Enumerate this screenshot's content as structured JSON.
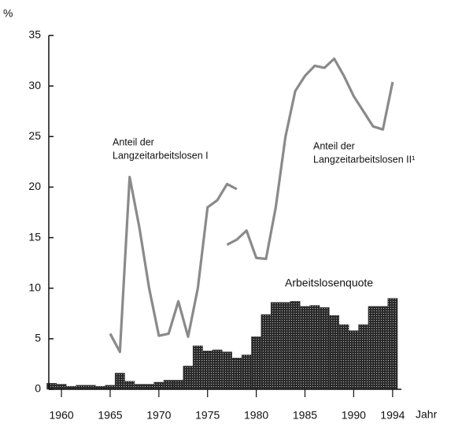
{
  "chart_data": {
    "type": "bar-line",
    "y_unit_label": "%",
    "x_axis_label": "Jahr",
    "xlim": [
      1958.7,
      1994.9
    ],
    "ylim": [
      0,
      35
    ],
    "xticks": [
      1960,
      1965,
      1970,
      1975,
      1980,
      1985,
      1990,
      1994
    ],
    "yticks": [
      0,
      5,
      10,
      15,
      20,
      25,
      30,
      35
    ],
    "bars": {
      "name": "Arbeitslosenquote",
      "color": "#3a3a3a",
      "x": [
        1959,
        1960,
        1961,
        1962,
        1963,
        1964,
        1965,
        1966,
        1967,
        1968,
        1969,
        1970,
        1971,
        1972,
        1973,
        1974,
        1975,
        1976,
        1977,
        1978,
        1979,
        1980,
        1981,
        1982,
        1983,
        1984,
        1985,
        1986,
        1987,
        1988,
        1989,
        1990,
        1991,
        1992,
        1993,
        1994
      ],
      "values": [
        0.6,
        0.5,
        0.3,
        0.4,
        0.4,
        0.3,
        0.4,
        1.6,
        0.8,
        0.5,
        0.5,
        0.7,
        0.9,
        0.9,
        2.3,
        4.3,
        3.8,
        3.9,
        3.7,
        3.1,
        3.4,
        5.2,
        7.4,
        8.6,
        8.6,
        8.7,
        8.2,
        8.3,
        8.1,
        7.3,
        6.4,
        5.8,
        6.4,
        8.2,
        8.2,
        9.0
      ]
    },
    "series": [
      {
        "name": [
          "Anteil der",
          "Langzeitarbeitslosen I"
        ],
        "color": "#8a8a8a",
        "x": [
          1965,
          1966,
          1967,
          1968,
          1969,
          1970,
          1971,
          1972,
          1973,
          1974,
          1975,
          1976,
          1977,
          1978
        ],
        "values": [
          5.5,
          3.7,
          21,
          16,
          10,
          5.3,
          5.5,
          8.7,
          5.2,
          10,
          18,
          18.7,
          20.3,
          19.8
        ]
      },
      {
        "name": [
          "Anteil der",
          "Langzeitarbeitslosen II¹"
        ],
        "color": "#8a8a8a",
        "x": [
          1977,
          1978,
          1979,
          1980,
          1981,
          1982,
          1983,
          1984,
          1985,
          1986,
          1987,
          1988,
          1989,
          1990,
          1991,
          1992,
          1993,
          1994
        ],
        "values": [
          14.3,
          14.8,
          15.7,
          13,
          12.9,
          18,
          25,
          29.5,
          31,
          32,
          31.8,
          32.7,
          31,
          29,
          27.5,
          26,
          25.7,
          30.4
        ]
      }
    ]
  }
}
